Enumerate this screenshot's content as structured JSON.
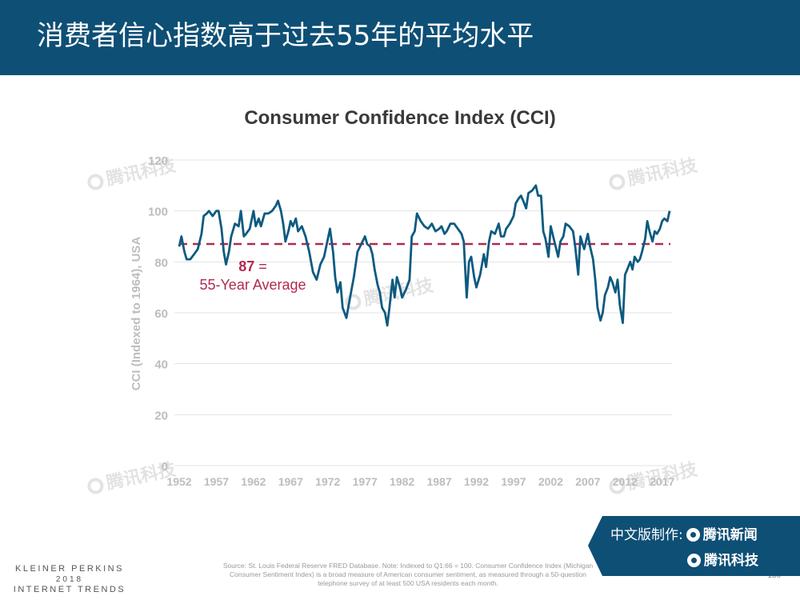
{
  "header": {
    "title": "消费者信心指数高于过去55年的平均水平"
  },
  "chart_data": {
    "type": "line",
    "title": "Consumer Confidence Index (CCI)",
    "ylabel": "CCI (Indexed to 1964), USA",
    "xlabel": "",
    "ylim": [
      0,
      120
    ],
    "xlim": [
      1952,
      2018
    ],
    "y_ticks": [
      "0",
      "20",
      "40",
      "60",
      "80",
      "100",
      "120"
    ],
    "x_ticks": [
      "1952",
      "1957",
      "1962",
      "1967",
      "1972",
      "1977",
      "1982",
      "1987",
      "1992",
      "1997",
      "2002",
      "2007",
      "2012",
      "2017"
    ],
    "grid": true,
    "series_color": "#0d5a80",
    "average": {
      "value": 87,
      "value_label": "87",
      "equals": " =",
      "label": "55-Year Average",
      "color": "#b02a4f"
    },
    "series": [
      {
        "values": [
          [
            1952.0,
            86
          ],
          [
            1952.3,
            90
          ],
          [
            1952.7,
            84
          ],
          [
            1953.0,
            81
          ],
          [
            1953.5,
            81
          ],
          [
            1954.0,
            83
          ],
          [
            1954.5,
            85
          ],
          [
            1955.0,
            91
          ],
          [
            1955.3,
            98
          ],
          [
            1955.7,
            99
          ],
          [
            1956.0,
            100
          ],
          [
            1956.5,
            98
          ],
          [
            1957.0,
            100
          ],
          [
            1957.3,
            100
          ],
          [
            1957.7,
            93
          ],
          [
            1958.0,
            84
          ],
          [
            1958.3,
            79
          ],
          [
            1958.7,
            84
          ],
          [
            1959.0,
            90
          ],
          [
            1959.5,
            95
          ],
          [
            1960.0,
            94
          ],
          [
            1960.3,
            100
          ],
          [
            1960.7,
            90
          ],
          [
            1961.0,
            91
          ],
          [
            1961.5,
            93
          ],
          [
            1962.0,
            100
          ],
          [
            1962.3,
            94
          ],
          [
            1962.7,
            97
          ],
          [
            1963.0,
            94
          ],
          [
            1963.5,
            99
          ],
          [
            1964.0,
            99
          ],
          [
            1964.5,
            100
          ],
          [
            1965.0,
            102
          ],
          [
            1965.3,
            104
          ],
          [
            1965.7,
            100
          ],
          [
            1966.0,
            95
          ],
          [
            1966.3,
            88
          ],
          [
            1966.7,
            92
          ],
          [
            1967.0,
            96
          ],
          [
            1967.3,
            94
          ],
          [
            1967.7,
            97
          ],
          [
            1968.0,
            92
          ],
          [
            1968.5,
            94
          ],
          [
            1969.0,
            90
          ],
          [
            1969.5,
            84
          ],
          [
            1970.0,
            76
          ],
          [
            1970.5,
            73
          ],
          [
            1971.0,
            79
          ],
          [
            1971.5,
            82
          ],
          [
            1972.0,
            89
          ],
          [
            1972.3,
            93
          ],
          [
            1972.7,
            84
          ],
          [
            1973.0,
            74
          ],
          [
            1973.3,
            68
          ],
          [
            1973.7,
            72
          ],
          [
            1974.0,
            62
          ],
          [
            1974.5,
            58
          ],
          [
            1975.0,
            66
          ],
          [
            1975.5,
            74
          ],
          [
            1976.0,
            84
          ],
          [
            1976.5,
            87
          ],
          [
            1977.0,
            90
          ],
          [
            1977.3,
            87
          ],
          [
            1977.7,
            86
          ],
          [
            1978.0,
            83
          ],
          [
            1978.3,
            77
          ],
          [
            1978.7,
            71
          ],
          [
            1979.0,
            68
          ],
          [
            1979.3,
            62
          ],
          [
            1979.7,
            60
          ],
          [
            1980.0,
            55
          ],
          [
            1980.3,
            62
          ],
          [
            1980.7,
            73
          ],
          [
            1981.0,
            66
          ],
          [
            1981.3,
            74
          ],
          [
            1981.7,
            70
          ],
          [
            1982.0,
            66
          ],
          [
            1982.5,
            69
          ],
          [
            1983.0,
            73
          ],
          [
            1983.3,
            90
          ],
          [
            1983.7,
            92
          ],
          [
            1984.0,
            99
          ],
          [
            1984.5,
            96
          ],
          [
            1985.0,
            94
          ],
          [
            1985.5,
            93
          ],
          [
            1986.0,
            95
          ],
          [
            1986.5,
            92
          ],
          [
            1987.0,
            93
          ],
          [
            1987.3,
            94
          ],
          [
            1987.7,
            91
          ],
          [
            1988.0,
            92
          ],
          [
            1988.5,
            95
          ],
          [
            1989.0,
            95
          ],
          [
            1989.5,
            93
          ],
          [
            1990.0,
            91
          ],
          [
            1990.3,
            88
          ],
          [
            1990.7,
            66
          ],
          [
            1991.0,
            80
          ],
          [
            1991.3,
            82
          ],
          [
            1991.7,
            74
          ],
          [
            1992.0,
            70
          ],
          [
            1992.5,
            75
          ],
          [
            1993.0,
            83
          ],
          [
            1993.3,
            78
          ],
          [
            1993.7,
            88
          ],
          [
            1994.0,
            92
          ],
          [
            1994.5,
            91
          ],
          [
            1995.0,
            95
          ],
          [
            1995.3,
            90
          ],
          [
            1995.7,
            90
          ],
          [
            1996.0,
            93
          ],
          [
            1996.5,
            95
          ],
          [
            1997.0,
            98
          ],
          [
            1997.3,
            103
          ],
          [
            1997.7,
            105
          ],
          [
            1998.0,
            106
          ],
          [
            1998.3,
            104
          ],
          [
            1998.7,
            101
          ],
          [
            1999.0,
            107
          ],
          [
            1999.5,
            108
          ],
          [
            2000.0,
            110
          ],
          [
            2000.3,
            106
          ],
          [
            2000.7,
            106
          ],
          [
            2001.0,
            92
          ],
          [
            2001.3,
            89
          ],
          [
            2001.7,
            82
          ],
          [
            2002.0,
            94
          ],
          [
            2002.5,
            88
          ],
          [
            2003.0,
            82
          ],
          [
            2003.3,
            88
          ],
          [
            2003.7,
            90
          ],
          [
            2004.0,
            95
          ],
          [
            2004.5,
            94
          ],
          [
            2005.0,
            92
          ],
          [
            2005.3,
            86
          ],
          [
            2005.7,
            75
          ],
          [
            2006.0,
            90
          ],
          [
            2006.5,
            85
          ],
          [
            2007.0,
            91
          ],
          [
            2007.3,
            86
          ],
          [
            2007.7,
            81
          ],
          [
            2008.0,
            73
          ],
          [
            2008.3,
            62
          ],
          [
            2008.7,
            57
          ],
          [
            2009.0,
            60
          ],
          [
            2009.3,
            67
          ],
          [
            2009.7,
            70
          ],
          [
            2010.0,
            74
          ],
          [
            2010.3,
            72
          ],
          [
            2010.7,
            68
          ],
          [
            2011.0,
            73
          ],
          [
            2011.3,
            63
          ],
          [
            2011.7,
            56
          ],
          [
            2012.0,
            75
          ],
          [
            2012.3,
            77
          ],
          [
            2012.7,
            80
          ],
          [
            2013.0,
            77
          ],
          [
            2013.3,
            82
          ],
          [
            2013.7,
            80
          ],
          [
            2014.0,
            81
          ],
          [
            2014.3,
            84
          ],
          [
            2014.7,
            89
          ],
          [
            2015.0,
            96
          ],
          [
            2015.3,
            92
          ],
          [
            2015.7,
            88
          ],
          [
            2016.0,
            92
          ],
          [
            2016.3,
            91
          ],
          [
            2016.7,
            93
          ],
          [
            2017.0,
            96
          ],
          [
            2017.3,
            97
          ],
          [
            2017.7,
            96
          ],
          [
            2018.0,
            100
          ]
        ]
      }
    ]
  },
  "source_note": "Source: St. Louis Federal Reserve FRED Database. Note: Indexed to Q1:66 = 100. Consumer Confidence Index (Michigan Consumer Sentiment Index) is a broad measure of American consumer sentiment, as measured through a 50-question telephone survey of at least 500 USA residents each month.",
  "page_number": "156",
  "branding": {
    "line1": "KLEINER PERKINS",
    "line2": "2018",
    "line3": "INTERNET TRENDS"
  },
  "badge": {
    "prefix": "中文版制作:",
    "name1": "腾讯新闻",
    "name2": "腾讯科技"
  },
  "watermark": "腾讯科技"
}
